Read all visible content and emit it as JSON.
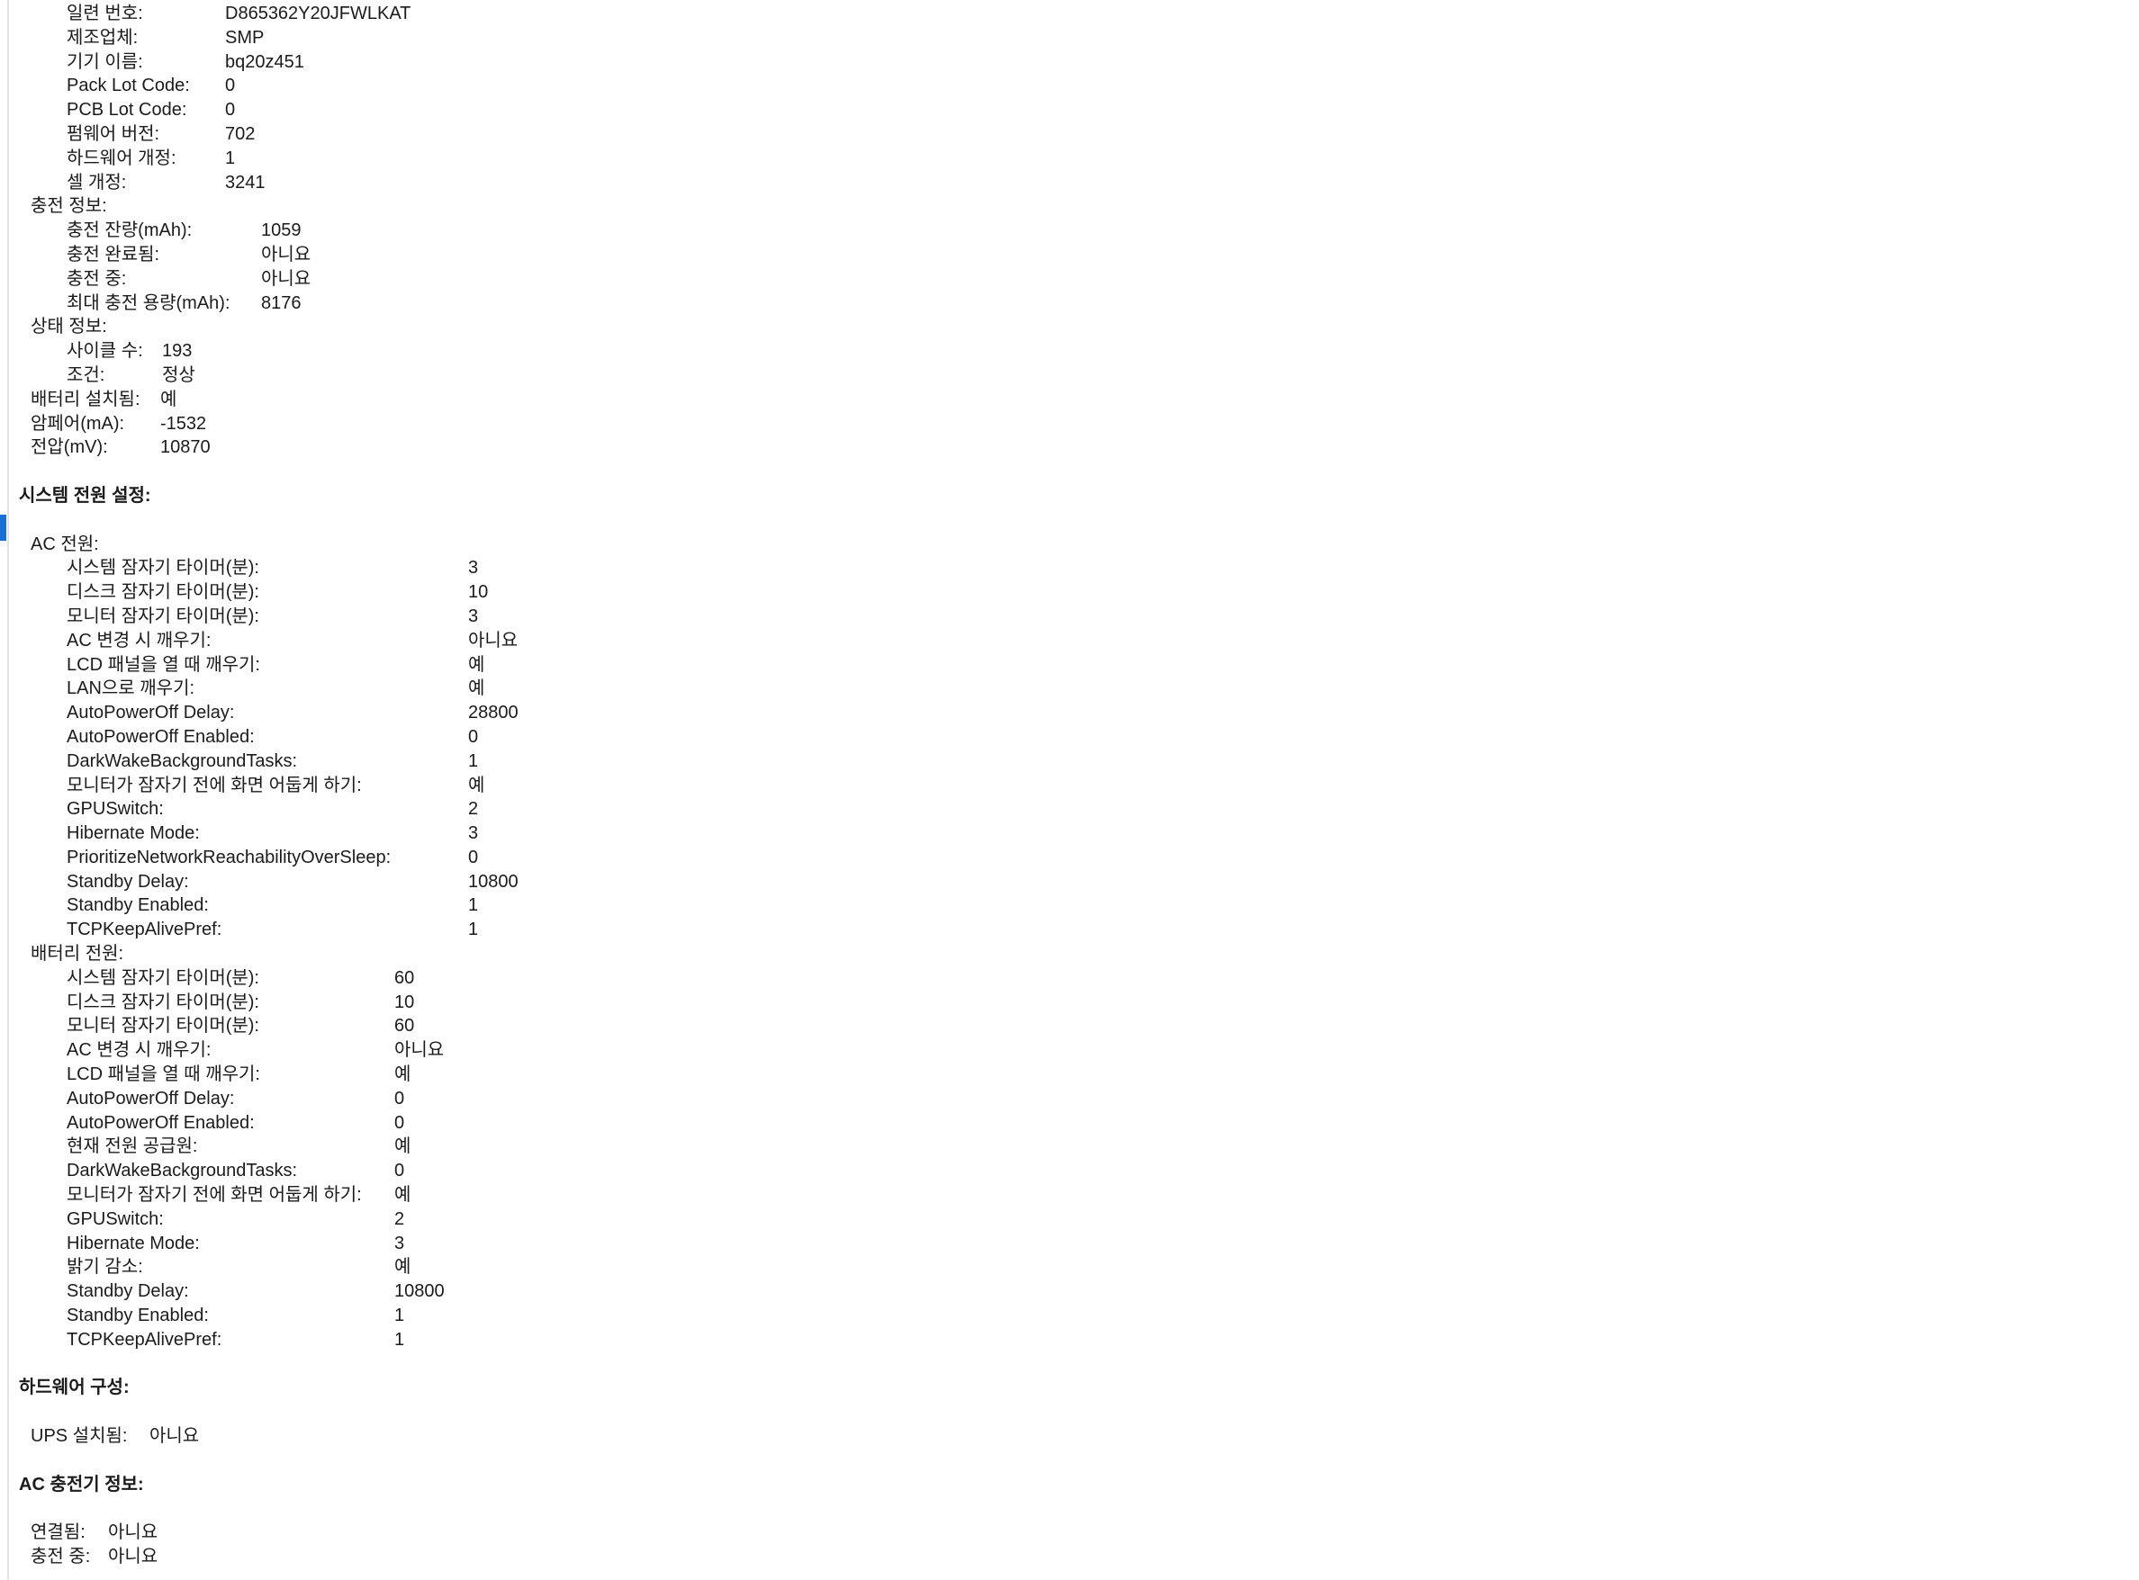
{
  "colors": {
    "selection_marker": "#1a6fd6",
    "text": "#1b1b1b"
  },
  "battery_info": {
    "rows": [
      {
        "key": "일련 번호:",
        "value": "D865362Y20JFWLKAT"
      },
      {
        "key": "제조업체:",
        "value": "SMP"
      },
      {
        "key": "기기 이름:",
        "value": "bq20z451"
      },
      {
        "key": "Pack Lot Code:",
        "value": "0"
      },
      {
        "key": "PCB Lot Code:",
        "value": "0"
      },
      {
        "key": "펌웨어 버전:",
        "value": "702"
      },
      {
        "key": "하드웨어 개정:",
        "value": "1"
      },
      {
        "key": "셀 개정:",
        "value": "3241"
      }
    ],
    "charge_info": {
      "label": "충전 정보:",
      "rows": [
        {
          "key": "충전 잔량(mAh):",
          "value": "1059"
        },
        {
          "key": "충전 완료됨:",
          "value": "아니요"
        },
        {
          "key": "충전 중:",
          "value": "아니요"
        },
        {
          "key": "최대 충전 용량(mAh):",
          "value": "8176"
        }
      ]
    },
    "health_info": {
      "label": "상태 정보:",
      "rows": [
        {
          "key": "사이클 수:",
          "value": "193"
        },
        {
          "key": "조건:",
          "value": "정상"
        }
      ]
    },
    "top_rows": [
      {
        "key": "배터리 설치됨:",
        "value": "예"
      },
      {
        "key": "암페어(mA):",
        "value": "-1532"
      },
      {
        "key": "전압(mV):",
        "value": "10870"
      }
    ]
  },
  "system_power": {
    "title": "시스템 전원 설정:",
    "ac_power": {
      "label": "AC 전원:",
      "rows": [
        {
          "key": "시스템 잠자기 타이머(분):",
          "value": "3"
        },
        {
          "key": "디스크 잠자기 타이머(분):",
          "value": "10"
        },
        {
          "key": "모니터 잠자기 타이머(분):",
          "value": "3"
        },
        {
          "key": "AC 변경 시 깨우기:",
          "value": "아니요"
        },
        {
          "key": "LCD 패널을 열 때 깨우기:",
          "value": "예"
        },
        {
          "key": "LAN으로 깨우기:",
          "value": "예"
        },
        {
          "key": "AutoPowerOff Delay:",
          "value": "28800"
        },
        {
          "key": "AutoPowerOff Enabled:",
          "value": "0"
        },
        {
          "key": "DarkWakeBackgroundTasks:",
          "value": "1"
        },
        {
          "key": "모니터가 잠자기 전에 화면 어둡게 하기:",
          "value": "예"
        },
        {
          "key": "GPUSwitch:",
          "value": "2"
        },
        {
          "key": "Hibernate Mode:",
          "value": "3"
        },
        {
          "key": "PrioritizeNetworkReachabilityOverSleep:",
          "value": "0"
        },
        {
          "key": "Standby Delay:",
          "value": "10800"
        },
        {
          "key": "Standby Enabled:",
          "value": "1"
        },
        {
          "key": "TCPKeepAlivePref:",
          "value": "1"
        }
      ]
    },
    "battery_power": {
      "label": "배터리 전원:",
      "rows": [
        {
          "key": "시스템 잠자기 타이머(분):",
          "value": "60"
        },
        {
          "key": "디스크 잠자기 타이머(분):",
          "value": "10"
        },
        {
          "key": "모니터 잠자기 타이머(분):",
          "value": "60"
        },
        {
          "key": "AC 변경 시 깨우기:",
          "value": "아니요"
        },
        {
          "key": "LCD 패널을 열 때 깨우기:",
          "value": "예"
        },
        {
          "key": "AutoPowerOff Delay:",
          "value": "0"
        },
        {
          "key": "AutoPowerOff Enabled:",
          "value": "0"
        },
        {
          "key": "현재 전원 공급원:",
          "value": "예"
        },
        {
          "key": "DarkWakeBackgroundTasks:",
          "value": "0"
        },
        {
          "key": "모니터가 잠자기 전에 화면 어둡게 하기:",
          "value": "예"
        },
        {
          "key": "GPUSwitch:",
          "value": "2"
        },
        {
          "key": "Hibernate Mode:",
          "value": "3"
        },
        {
          "key": "밝기 감소:",
          "value": "예"
        },
        {
          "key": "Standby Delay:",
          "value": "10800"
        },
        {
          "key": "Standby Enabled:",
          "value": "1"
        },
        {
          "key": "TCPKeepAlivePref:",
          "value": "1"
        }
      ]
    }
  },
  "hardware_config": {
    "title": "하드웨어 구성:",
    "rows": [
      {
        "key": "UPS 설치됨:",
        "value": "아니요"
      }
    ]
  },
  "ac_charger": {
    "title": "AC 충전기 정보:",
    "rows": [
      {
        "key": "연결됨:",
        "value": "아니요"
      },
      {
        "key": "충전 중:",
        "value": "아니요"
      }
    ]
  }
}
